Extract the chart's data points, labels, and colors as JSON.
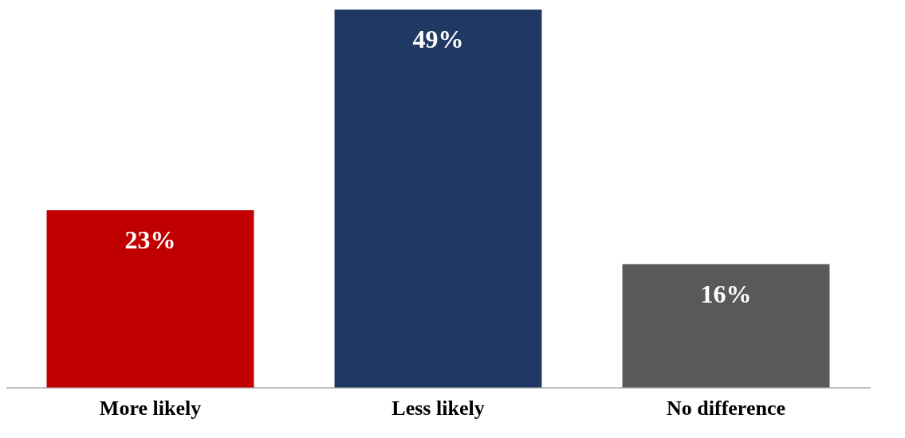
{
  "chart_data": {
    "type": "bar",
    "categories": [
      "More likely",
      "Less likely",
      "No difference"
    ],
    "values": [
      23,
      49,
      16
    ],
    "colors": [
      "#c00000",
      "#1f3864",
      "#595959"
    ],
    "value_labels": [
      "23%",
      "49%",
      "16%"
    ],
    "grid": false,
    "legend": false
  }
}
